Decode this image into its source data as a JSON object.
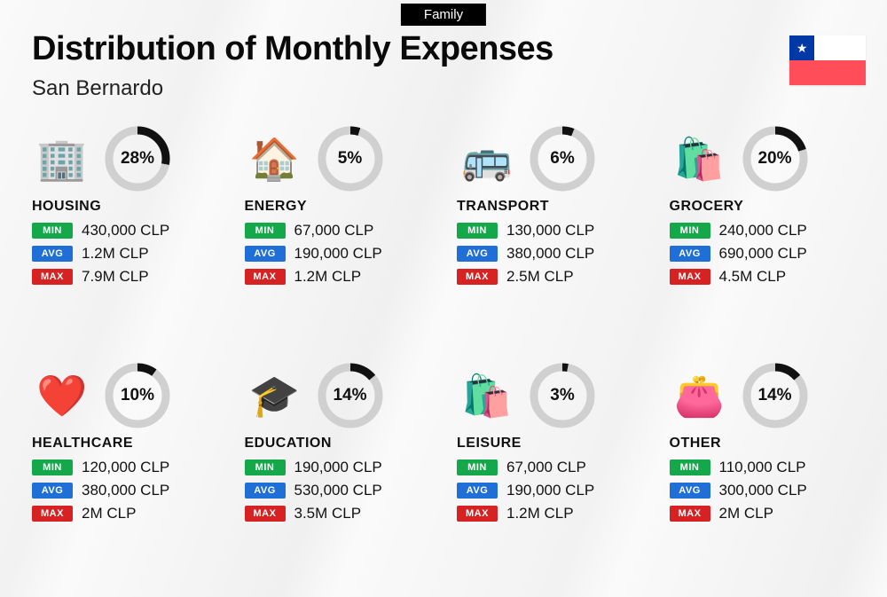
{
  "tag": "Family",
  "title": "Distribution of Monthly Expenses",
  "subtitle": "San Bernardo",
  "flag": {
    "canton_color": "#0039a6",
    "white": "#ffffff",
    "bottom": "#ff4d5a",
    "star": "★"
  },
  "badge_labels": {
    "min": "MIN",
    "avg": "AVG",
    "max": "MAX"
  },
  "badge_colors": {
    "min": "#15a84a",
    "avg": "#1f6fd6",
    "max": "#d62222"
  },
  "ring_style": {
    "track_color": "#d0d0d0",
    "arc_color": "#111111",
    "stroke_width": 9
  },
  "currency_suffix": " CLP",
  "categories": [
    {
      "key": "housing",
      "name": "HOUSING",
      "icon": "🏢",
      "percent": 28,
      "min": "430,000",
      "avg": "1.2M",
      "max": "7.9M"
    },
    {
      "key": "energy",
      "name": "ENERGY",
      "icon": "🏠",
      "percent": 5,
      "min": "67,000",
      "avg": "190,000",
      "max": "1.2M"
    },
    {
      "key": "transport",
      "name": "TRANSPORT",
      "icon": "🚌",
      "percent": 6,
      "min": "130,000",
      "avg": "380,000",
      "max": "2.5M"
    },
    {
      "key": "grocery",
      "name": "GROCERY",
      "icon": "🛍️",
      "percent": 20,
      "min": "240,000",
      "avg": "690,000",
      "max": "4.5M"
    },
    {
      "key": "healthcare",
      "name": "HEALTHCARE",
      "icon": "❤️",
      "percent": 10,
      "min": "120,000",
      "avg": "380,000",
      "max": "2M"
    },
    {
      "key": "education",
      "name": "EDUCATION",
      "icon": "🎓",
      "percent": 14,
      "min": "190,000",
      "avg": "530,000",
      "max": "3.5M"
    },
    {
      "key": "leisure",
      "name": "LEISURE",
      "icon": "🛍️",
      "percent": 3,
      "min": "67,000",
      "avg": "190,000",
      "max": "1.2M"
    },
    {
      "key": "other",
      "name": "OTHER",
      "icon": "👛",
      "percent": 14,
      "min": "110,000",
      "avg": "300,000",
      "max": "2M"
    }
  ]
}
